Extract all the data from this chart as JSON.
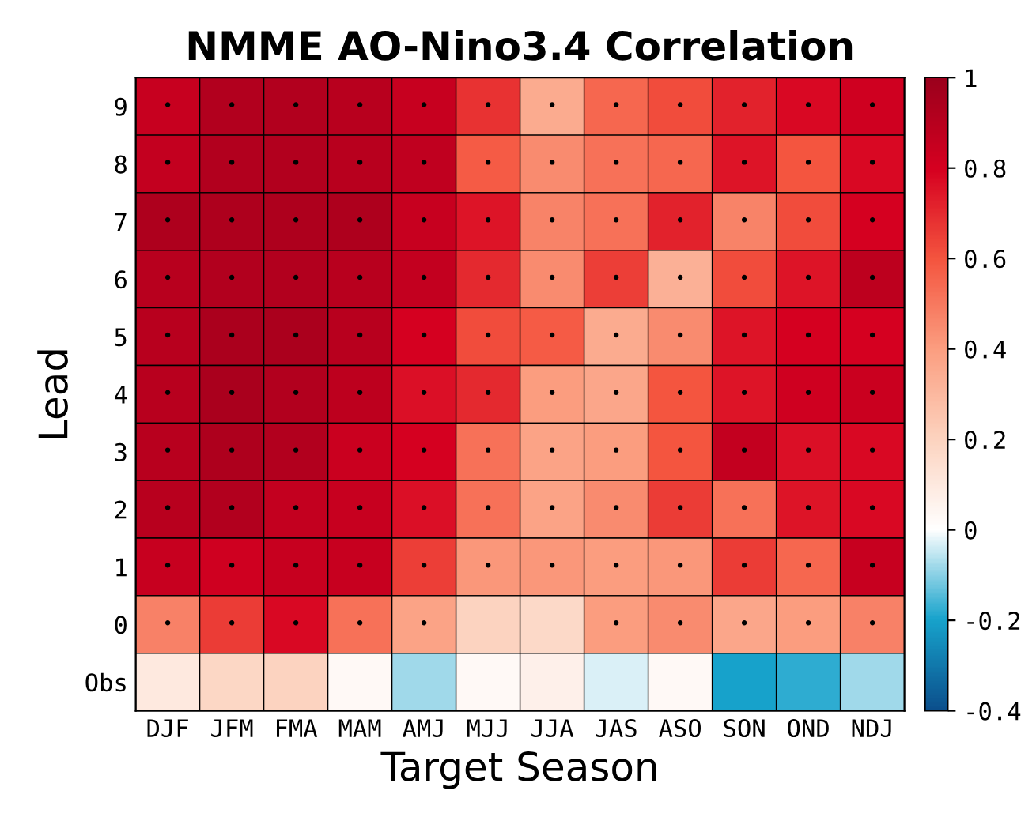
{
  "chart_data": {
    "type": "heatmap",
    "title": "NMME AO-Nino3.4 Correlation",
    "xlabel": "Target Season",
    "ylabel": "Lead",
    "categories": [
      "DJF",
      "JFM",
      "FMA",
      "MAM",
      "AMJ",
      "MJJ",
      "JJA",
      "JAS",
      "ASO",
      "SON",
      "OND",
      "NDJ"
    ],
    "y_categories": [
      "9",
      "8",
      "7",
      "6",
      "5",
      "4",
      "3",
      "2",
      "1",
      "0",
      "Obs"
    ],
    "cells": [
      [
        0.85,
        0.92,
        0.92,
        0.9,
        0.85,
        0.68,
        0.35,
        0.55,
        0.62,
        0.72,
        0.78,
        0.82
      ],
      [
        0.86,
        0.92,
        0.92,
        0.9,
        0.87,
        0.58,
        0.45,
        0.52,
        0.55,
        0.75,
        0.6,
        0.78
      ],
      [
        0.93,
        0.93,
        0.93,
        0.93,
        0.85,
        0.75,
        0.47,
        0.52,
        0.72,
        0.47,
        0.62,
        0.8
      ],
      [
        0.9,
        0.92,
        0.92,
        0.9,
        0.86,
        0.7,
        0.45,
        0.65,
        0.33,
        0.62,
        0.75,
        0.88
      ],
      [
        0.9,
        0.94,
        0.94,
        0.9,
        0.8,
        0.62,
        0.58,
        0.35,
        0.45,
        0.75,
        0.8,
        0.8
      ],
      [
        0.9,
        0.95,
        0.92,
        0.88,
        0.76,
        0.7,
        0.4,
        0.37,
        0.6,
        0.75,
        0.82,
        0.84
      ],
      [
        0.9,
        0.93,
        0.92,
        0.84,
        0.8,
        0.52,
        0.38,
        0.4,
        0.6,
        0.86,
        0.76,
        0.78
      ],
      [
        0.9,
        0.92,
        0.86,
        0.85,
        0.76,
        0.52,
        0.38,
        0.45,
        0.66,
        0.52,
        0.75,
        0.78
      ],
      [
        0.85,
        0.82,
        0.85,
        0.85,
        0.65,
        0.42,
        0.42,
        0.4,
        0.42,
        0.66,
        0.55,
        0.85
      ],
      [
        0.48,
        0.66,
        0.78,
        0.52,
        0.38,
        0.2,
        0.17,
        0.4,
        0.45,
        0.37,
        0.4,
        0.48
      ],
      [
        0.1,
        0.18,
        0.2,
        0.03,
        -0.08,
        0.03,
        0.07,
        -0.03,
        0.03,
        -0.2,
        -0.18,
        -0.08
      ]
    ],
    "cell_labels": [
      [
        "•",
        "•",
        "•",
        "•",
        "•",
        "•",
        "•",
        "•",
        "•",
        "•",
        "•",
        "•"
      ],
      [
        "•",
        "•",
        "•",
        "•",
        "•",
        "•",
        "•",
        "•",
        "•",
        "•",
        "•",
        "•"
      ],
      [
        "•",
        "•",
        "•",
        "•",
        "•",
        "•",
        "•",
        "•",
        "•",
        "•",
        "•",
        "•"
      ],
      [
        "•",
        "•",
        "•",
        "•",
        "•",
        "•",
        "•",
        "•",
        "•",
        "•",
        "•",
        "•"
      ],
      [
        "•",
        "•",
        "•",
        "•",
        "•",
        "•",
        "•",
        "•",
        "•",
        "•",
        "•",
        "•"
      ],
      [
        "•",
        "•",
        "•",
        "•",
        "•",
        "•",
        "•",
        "•",
        "•",
        "•",
        "•",
        "•"
      ],
      [
        "•",
        "•",
        "•",
        "•",
        "•",
        "•",
        "•",
        "•",
        "•",
        "•",
        "•",
        "•"
      ],
      [
        "•",
        "•",
        "•",
        "•",
        "•",
        "•",
        "•",
        "•",
        "•",
        "•",
        "•",
        "•"
      ],
      [
        "•",
        "•",
        "•",
        "•",
        "•",
        "•",
        "•",
        "•",
        "•",
        "•",
        "•",
        "•"
      ],
      [
        "•",
        "•",
        "•",
        "•",
        "•",
        null,
        null,
        "•",
        "•",
        "•",
        "•",
        "•"
      ],
      [
        null,
        null,
        null,
        null,
        null,
        null,
        null,
        null,
        null,
        null,
        null,
        null
      ]
    ],
    "clim": [
      -0.4,
      1
    ],
    "cticks": [
      -0.4,
      -0.2,
      0,
      0.2,
      0.4,
      0.6,
      0.8,
      1
    ]
  }
}
